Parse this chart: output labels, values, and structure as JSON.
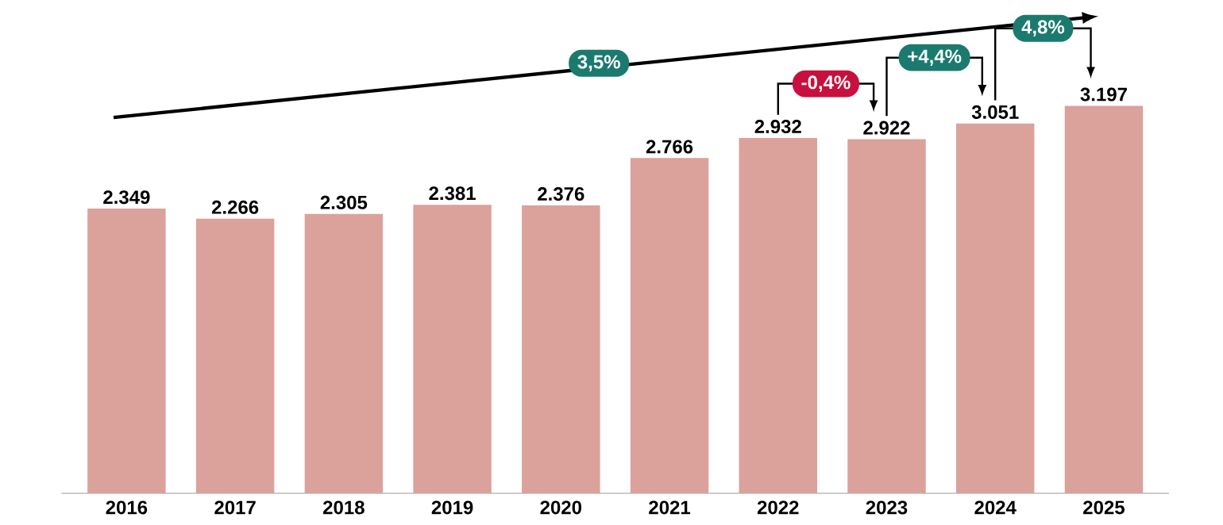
{
  "chart_data": {
    "type": "bar",
    "categories": [
      "2016",
      "2017",
      "2018",
      "2019",
      "2020",
      "2021",
      "2022",
      "2023",
      "2024",
      "2025"
    ],
    "values": [
      2349,
      2266,
      2305,
      2381,
      2376,
      2766,
      2932,
      2922,
      3051,
      3197
    ],
    "value_labels": [
      "2.349",
      "2.266",
      "2.305",
      "2.381",
      "2.376",
      "2.766",
      "2.932",
      "2.922",
      "3.051",
      "3.197"
    ],
    "color": "#dba19b",
    "annotations": [
      "3,5%",
      "-0,4%",
      "+4,4%",
      "4,8%"
    ]
  }
}
